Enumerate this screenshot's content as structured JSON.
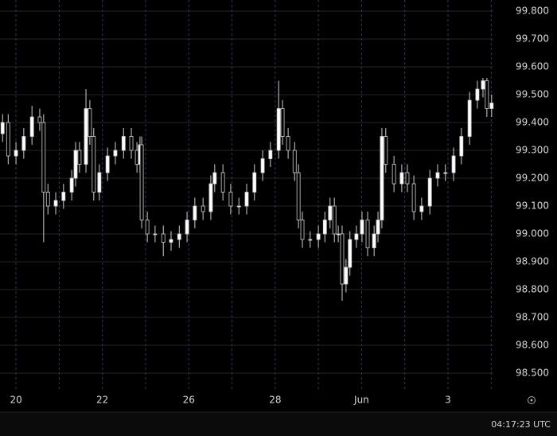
{
  "chart_data": {
    "type": "candlestick",
    "x": [
      -0.31,
      -0.18,
      0,
      0.18,
      0.37,
      0.55,
      0.64,
      0.74,
      0.92,
      1.1,
      1.29,
      1.38,
      1.47,
      1.62,
      1.71,
      1.8,
      1.93,
      2.12,
      2.3,
      2.49,
      2.67,
      2.8,
      2.87,
      2.91,
      3.04,
      3.22,
      3.41,
      3.59,
      3.78,
      3.96,
      4.14,
      4.33,
      4.51,
      4.6,
      4.79,
      4.97,
      5.16,
      5.34,
      5.52,
      5.71,
      5.89,
      6.08,
      6.17,
      6.3,
      6.45,
      6.54,
      6.63,
      6.81,
      7.0,
      7.15,
      7.27,
      7.37,
      7.46,
      7.55,
      7.64,
      7.73,
      7.88,
      8.01,
      8.14,
      8.29,
      8.38,
      8.47,
      8.56,
      8.75,
      8.93,
      9.06,
      9.21,
      9.39,
      9.58,
      9.76,
      9.94,
      10.13,
      10.31,
      10.5,
      10.68,
      10.81,
      10.9,
      11.01
    ],
    "open": [
      99.36,
      99.4,
      99.28,
      99.3,
      99.35,
      99.42,
      99.4,
      99.15,
      99.1,
      99.12,
      99.15,
      99.2,
      99.3,
      99.25,
      99.45,
      99.35,
      99.15,
      99.22,
      99.28,
      99.3,
      99.35,
      99.3,
      99.25,
      99.32,
      99.05,
      99.0,
      99.0,
      98.97,
      98.98,
      99.0,
      99.05,
      99.1,
      99.08,
      99.18,
      99.22,
      99.15,
      99.1,
      99.1,
      99.15,
      99.22,
      99.27,
      99.3,
      99.45,
      99.35,
      99.3,
      99.22,
      99.05,
      98.98,
      98.98,
      99.0,
      99.05,
      99.1,
      99.0,
      99.0,
      98.82,
      98.88,
      98.98,
      99.0,
      99.05,
      98.95,
      99.0,
      99.05,
      99.35,
      99.25,
      99.18,
      99.22,
      99.18,
      99.08,
      99.1,
      99.2,
      99.22,
      99.22,
      99.28,
      99.35,
      99.48,
      99.52,
      99.55,
      99.45
    ],
    "high": [
      99.43,
      99.43,
      99.33,
      99.38,
      99.46,
      99.45,
      99.43,
      99.18,
      99.15,
      99.18,
      99.23,
      99.33,
      99.33,
      99.52,
      99.48,
      99.38,
      99.25,
      99.31,
      99.33,
      99.38,
      99.38,
      99.33,
      99.35,
      99.35,
      99.08,
      99.03,
      99.03,
      99.01,
      99.03,
      99.08,
      99.13,
      99.13,
      99.21,
      99.25,
      99.25,
      99.18,
      99.13,
      99.18,
      99.25,
      99.3,
      99.33,
      99.55,
      99.48,
      99.38,
      99.33,
      99.25,
      99.08,
      99.01,
      99.03,
      99.08,
      99.13,
      99.13,
      99.03,
      99.03,
      98.91,
      99.01,
      99.03,
      99.08,
      99.08,
      99.03,
      99.08,
      99.38,
      99.38,
      99.28,
      99.25,
      99.25,
      99.21,
      99.13,
      99.23,
      99.25,
      99.25,
      99.31,
      99.38,
      99.51,
      99.55,
      99.56,
      99.56,
      99.5
    ],
    "low": [
      99.33,
      99.25,
      99.25,
      99.27,
      99.32,
      99.37,
      98.97,
      99.07,
      99.07,
      99.09,
      99.12,
      99.17,
      99.22,
      99.22,
      99.32,
      99.12,
      99.12,
      99.19,
      99.25,
      99.27,
      99.27,
      99.22,
      99.22,
      99.02,
      98.97,
      98.97,
      98.92,
      98.94,
      98.95,
      98.97,
      99.02,
      99.05,
      99.05,
      99.15,
      99.12,
      99.07,
      99.07,
      99.07,
      99.12,
      99.19,
      99.24,
      99.27,
      99.32,
      99.27,
      99.19,
      99.02,
      98.95,
      98.95,
      98.95,
      98.97,
      99.02,
      98.97,
      98.97,
      98.76,
      98.79,
      98.85,
      98.95,
      98.97,
      98.92,
      98.92,
      98.97,
      99.02,
      99.22,
      99.15,
      99.15,
      99.15,
      99.05,
      99.05,
      99.07,
      99.17,
      99.19,
      99.19,
      99.25,
      99.32,
      99.45,
      99.49,
      99.42,
      99.42
    ],
    "close": [
      99.4,
      99.28,
      99.3,
      99.35,
      99.42,
      99.4,
      99.15,
      99.1,
      99.12,
      99.15,
      99.2,
      99.3,
      99.25,
      99.45,
      99.35,
      99.15,
      99.22,
      99.28,
      99.3,
      99.35,
      99.3,
      99.25,
      99.32,
      99.05,
      99.0,
      99.0,
      98.97,
      98.98,
      99.0,
      99.05,
      99.1,
      99.08,
      99.18,
      99.22,
      99.15,
      99.1,
      99.1,
      99.15,
      99.22,
      99.27,
      99.3,
      99.45,
      99.35,
      99.3,
      99.22,
      99.05,
      98.98,
      98.98,
      99.0,
      99.05,
      99.1,
      99.0,
      99.0,
      98.82,
      98.88,
      98.98,
      99.0,
      99.05,
      98.95,
      99.0,
      99.05,
      99.35,
      99.25,
      99.18,
      99.22,
      99.18,
      99.08,
      99.1,
      99.2,
      99.22,
      99.22,
      99.28,
      99.35,
      99.48,
      99.52,
      99.55,
      99.45,
      99.47
    ],
    "up_color": "#ffffff",
    "down_color": "#000000",
    "wick_color": "#d0d0d0",
    "xlim": [
      -0.37,
      11.05
    ],
    "xticks": [
      {
        "value": 0,
        "label": "20"
      },
      {
        "value": 2,
        "label": "22"
      },
      {
        "value": 4,
        "label": "26"
      },
      {
        "value": 6,
        "label": "28"
      },
      {
        "value": 8,
        "label": "Jun"
      },
      {
        "value": 10,
        "label": "3"
      }
    ],
    "xgrid": [
      0,
      1,
      2,
      3,
      4,
      5,
      6,
      7,
      8,
      9,
      10,
      11
    ],
    "ylim": [
      98.44,
      99.84
    ],
    "yticks": [
      {
        "value": 98.5,
        "label": "98.500"
      },
      {
        "value": 98.6,
        "label": "98.600"
      },
      {
        "value": 98.7,
        "label": "98.700"
      },
      {
        "value": 98.8,
        "label": "98.800"
      },
      {
        "value": 98.9,
        "label": "98.900"
      },
      {
        "value": 99.0,
        "label": "99.000"
      },
      {
        "value": 99.1,
        "label": "99.100"
      },
      {
        "value": 99.2,
        "label": "99.200"
      },
      {
        "value": 99.3,
        "label": "99.300"
      },
      {
        "value": 99.4,
        "label": "99.400"
      },
      {
        "value": 99.5,
        "label": "99.500"
      },
      {
        "value": 99.6,
        "label": "99.600"
      },
      {
        "value": 99.7,
        "label": "99.700"
      },
      {
        "value": 99.8,
        "label": "99.800"
      }
    ],
    "grid": true
  },
  "status_bar": {
    "time": "04:17:23 UTC"
  }
}
